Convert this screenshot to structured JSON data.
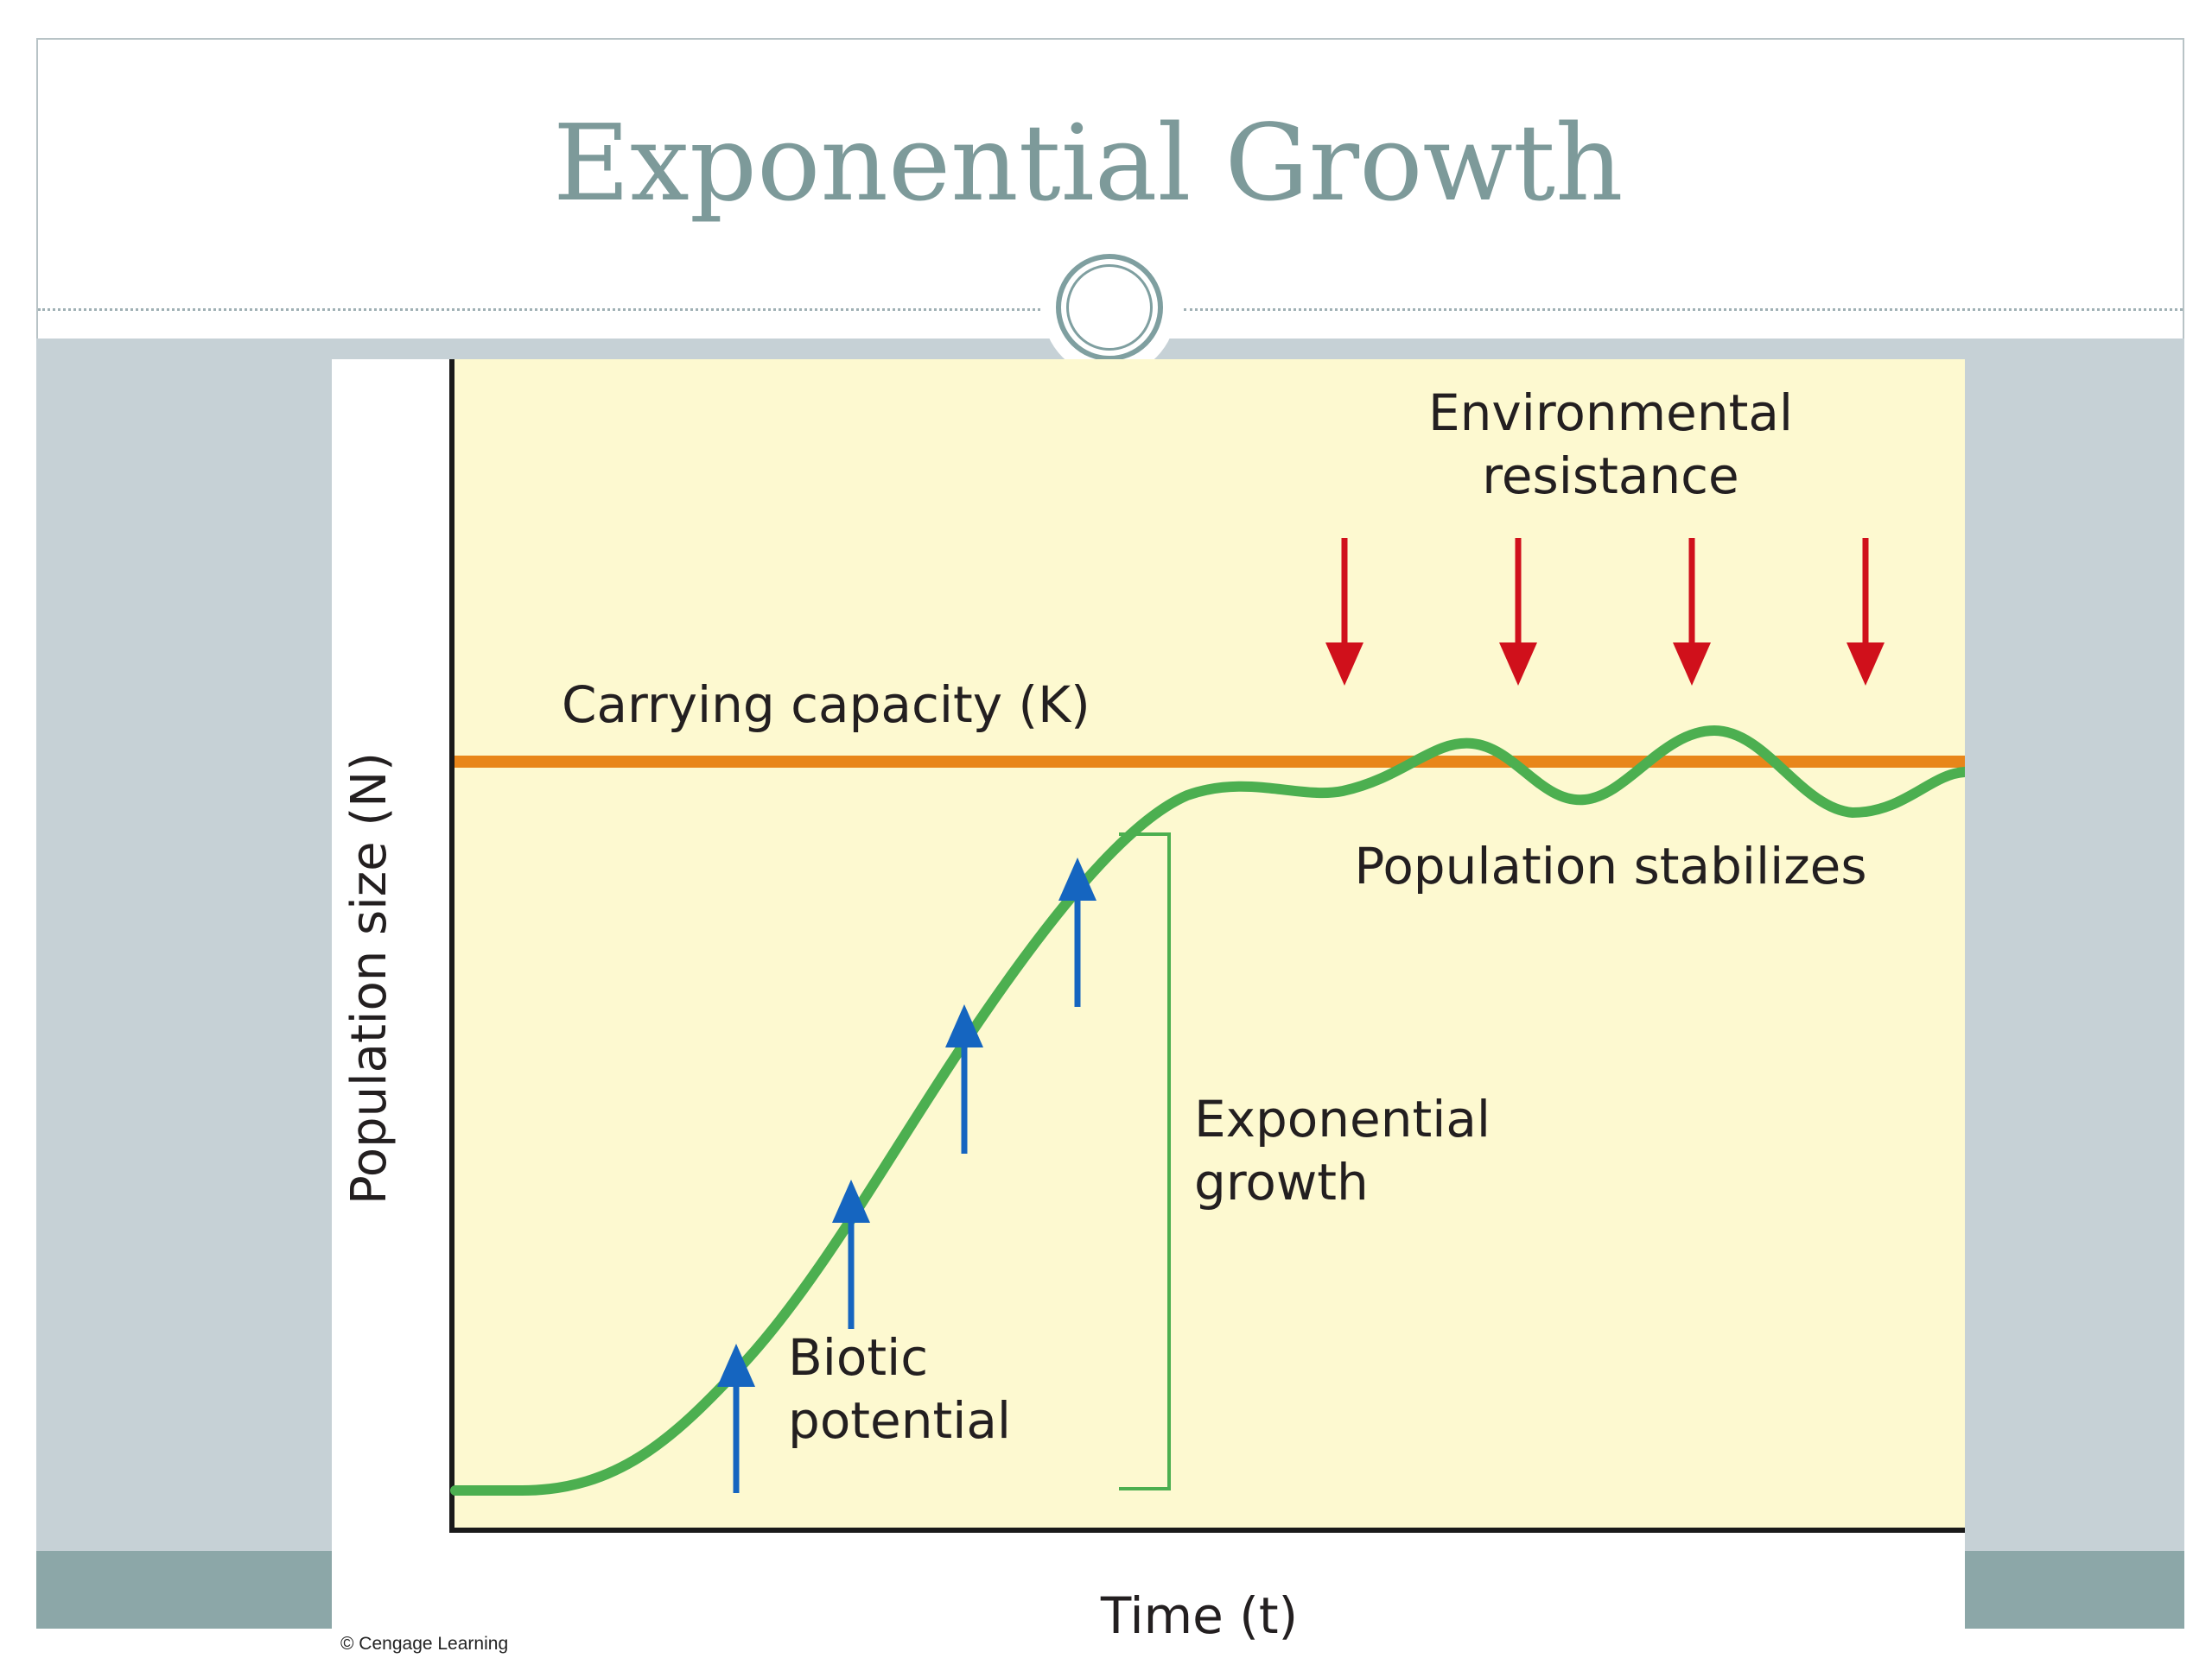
{
  "slide": {
    "title": "Exponential Growth",
    "credit": "© Cengage Learning"
  },
  "diagram": {
    "y_axis_label": "Population size (N)",
    "x_axis_label": "Time (t)",
    "carrying_capacity_label": "Carrying capacity (K)",
    "environmental_resistance_lines": [
      "Environmental",
      "resistance"
    ],
    "population_stabilizes_label": "Population stabilizes",
    "exponential_growth_lines": [
      "Exponential",
      "growth"
    ],
    "biotic_potential_lines": [
      "Biotic",
      "potential"
    ]
  },
  "colors": {
    "plot_background": "#fdf9d0",
    "curve": "#4caf50",
    "carrying_capacity_line": "#e8861a",
    "biotic_arrows": "#1565c0",
    "resistance_arrows": "#d0101b",
    "title": "#7d9a9a"
  },
  "icons": {
    "biotic_potential_arrows": "arrow-up-icon",
    "environmental_resistance_arrows": "arrow-down-icon"
  }
}
